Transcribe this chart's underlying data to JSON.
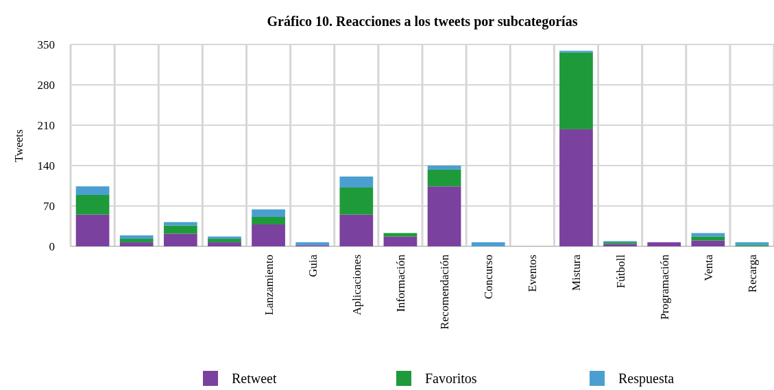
{
  "chart_data": {
    "type": "bar",
    "title": "Gráfico 10. Reacciones a los tweets por subcategorías",
    "ylabel": "Tweets",
    "categories": [
      null,
      null,
      null,
      null,
      "Lanzamiento",
      "Guia",
      "Aplicaciones",
      "Información",
      "Recomendación",
      "Concurso",
      "Eventos",
      "Mistura",
      "Fútboll",
      "Programación",
      "Venta",
      "Recarga"
    ],
    "series": [
      {
        "name": "Retweet",
        "color": "#7b419e",
        "values": [
          55,
          7,
          22,
          7,
          38,
          2,
          55,
          17,
          104,
          0,
          0,
          203,
          4,
          7,
          10,
          0
        ]
      },
      {
        "name": "Favoritos",
        "color": "#1e9a3a",
        "values": [
          34,
          6,
          14,
          6,
          13,
          0,
          47,
          6,
          29,
          0,
          0,
          133,
          3,
          0,
          7,
          2
        ]
      },
      {
        "name": "Respuesta",
        "color": "#4b9fd0",
        "values": [
          15,
          6,
          6,
          4,
          13,
          5,
          19,
          0,
          7,
          7,
          0,
          3,
          2,
          0,
          6,
          5
        ]
      }
    ],
    "stacked": true,
    "ylim": [
      0,
      350
    ],
    "yticks": [
      0,
      70,
      140,
      210,
      280,
      350
    ],
    "grid": true,
    "legend": "bottom"
  }
}
